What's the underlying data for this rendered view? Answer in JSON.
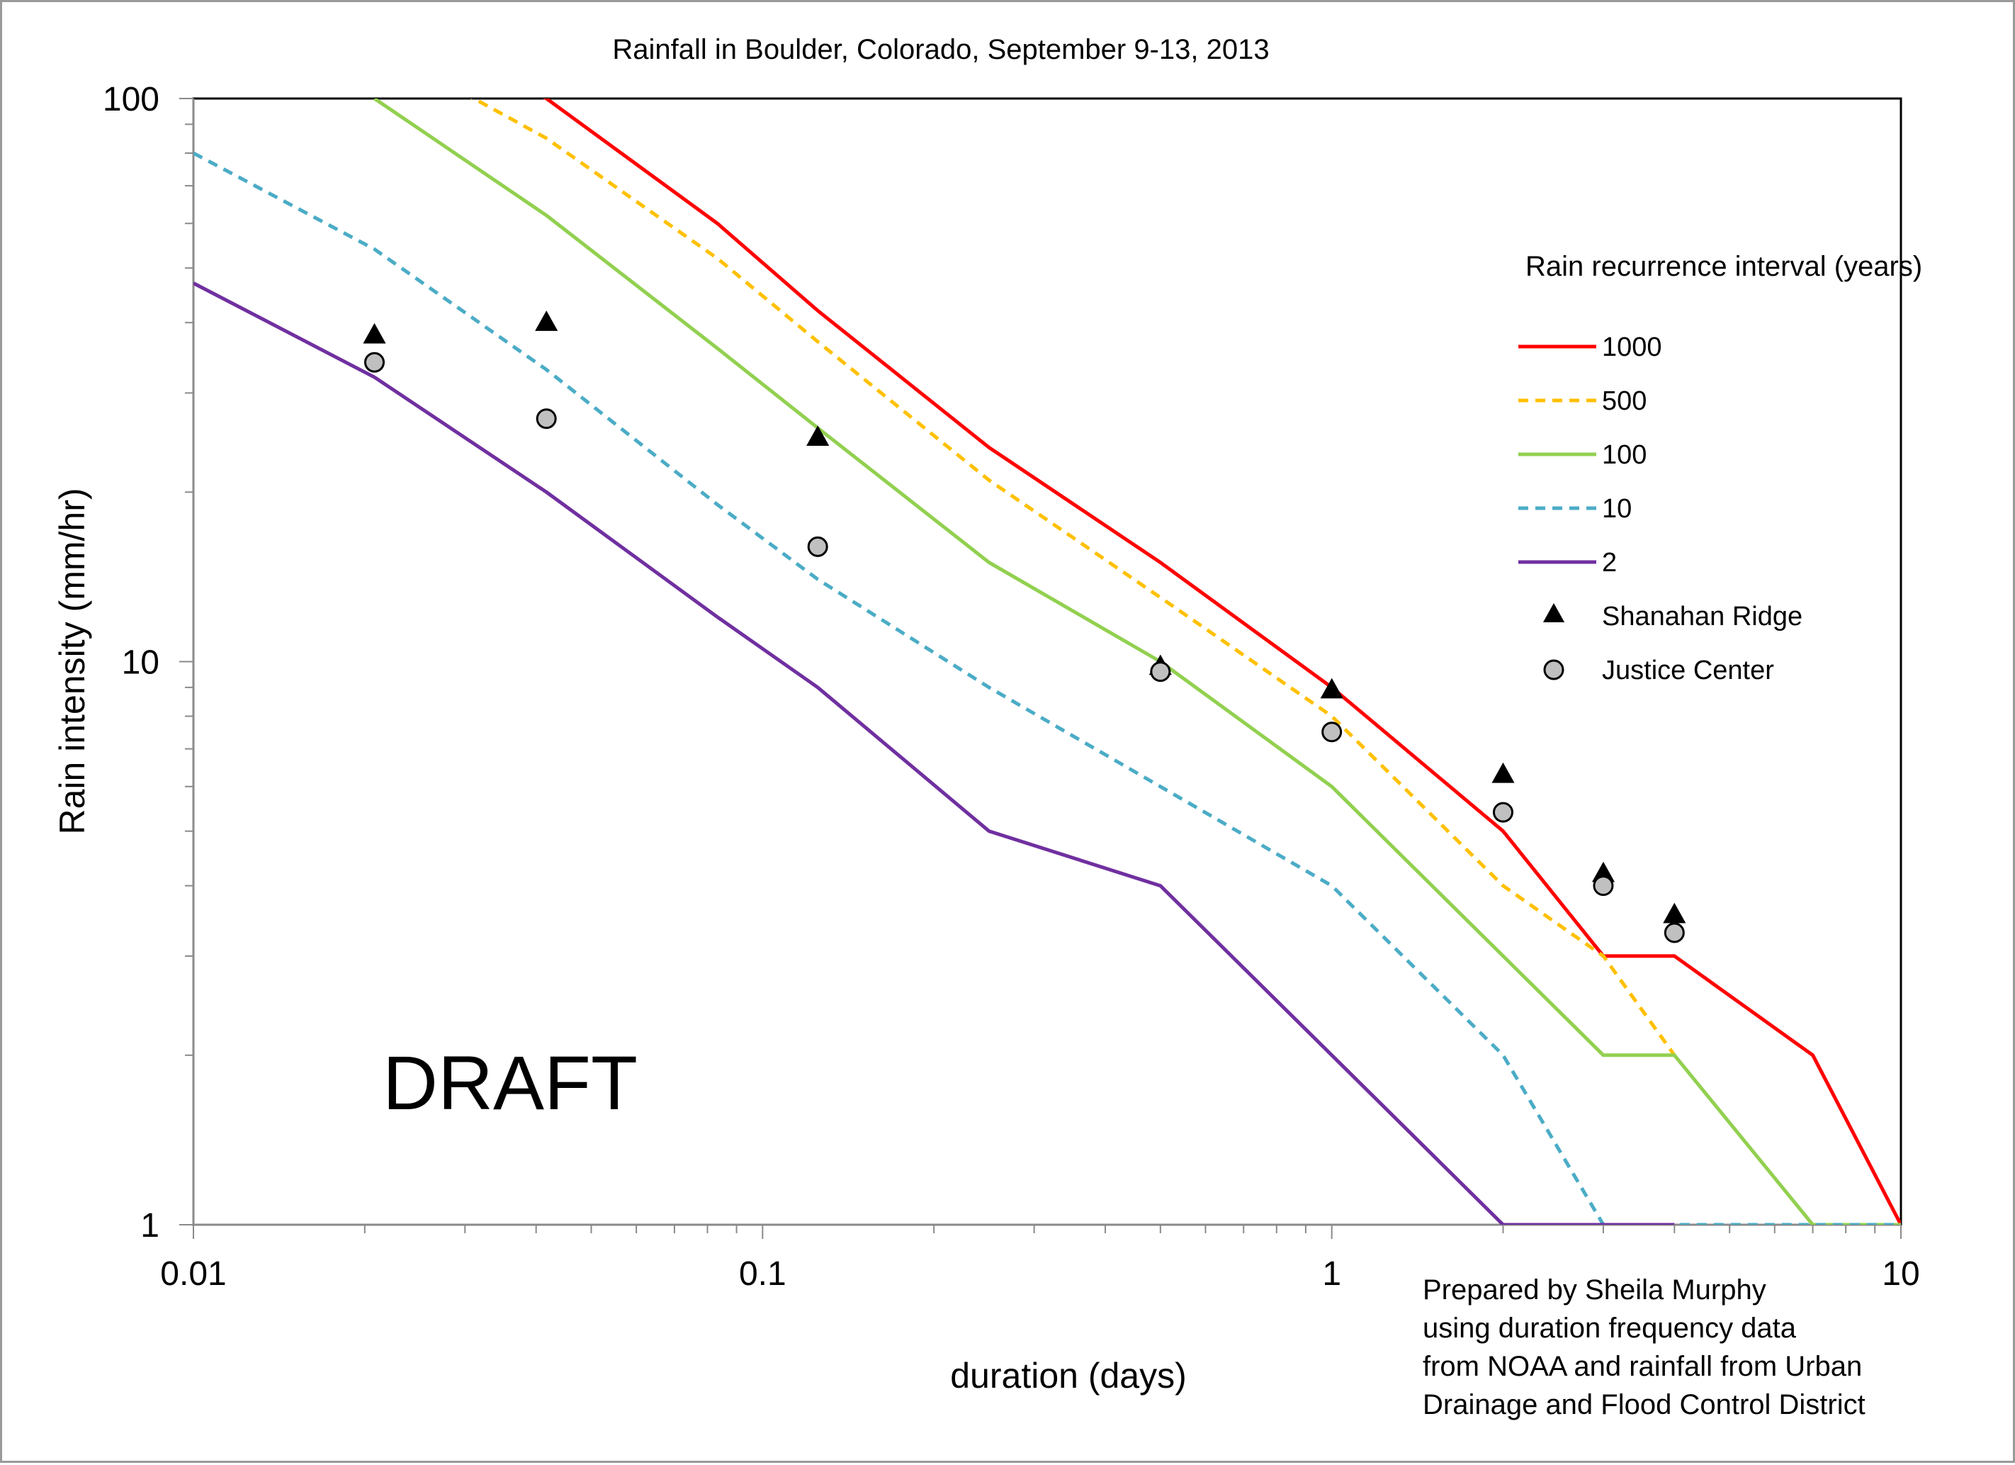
{
  "chart_data": {
    "type": "line",
    "title": "Rainfall in Boulder, Colorado, September 9-13, 2013",
    "xlabel": "duration (days)",
    "ylabel": "Rain intensity (mm/hr)",
    "x_scale": "log",
    "y_scale": "log",
    "xlim": [
      0.01,
      10
    ],
    "ylim": [
      1,
      100
    ],
    "x_ticks": [
      {
        "value": 0.01,
        "label": "0.01"
      },
      {
        "value": 0.1,
        "label": "0.1"
      },
      {
        "value": 1,
        "label": "1"
      },
      {
        "value": 10,
        "label": "10"
      }
    ],
    "y_ticks": [
      {
        "value": 1,
        "label": "1"
      },
      {
        "value": 10,
        "label": "10"
      },
      {
        "value": 100,
        "label": "100"
      }
    ],
    "grid": false,
    "legend": {
      "title": "Rain recurrence interval (years)",
      "position": "right"
    },
    "series": [
      {
        "name": "1000",
        "style": "solid",
        "color": "#ff0000",
        "x": [
          0.0208,
          0.0417,
          0.0833,
          0.125,
          0.25,
          0.5,
          1,
          2,
          3,
          4,
          7,
          10
        ],
        "y": [
          145,
          100,
          60,
          42,
          24,
          15,
          9,
          5,
          3,
          3,
          2,
          1
        ]
      },
      {
        "name": "500",
        "style": "dashed",
        "color": "#ffc000",
        "x": [
          0.0208,
          0.0417,
          0.0833,
          0.125,
          0.25,
          0.5,
          1,
          2,
          3,
          4
        ],
        "y": [
          125,
          85,
          52,
          37,
          21,
          13,
          8,
          4,
          3,
          2
        ]
      },
      {
        "name": "100",
        "style": "solid",
        "color": "#92d050",
        "x": [
          0.0208,
          0.0417,
          0.0833,
          0.125,
          0.25,
          0.5,
          1,
          2,
          3,
          4,
          7,
          10
        ],
        "y": [
          100,
          62,
          36,
          26,
          15,
          10,
          6,
          3,
          2,
          2,
          1,
          1
        ]
      },
      {
        "name": "10",
        "style": "dashed",
        "color": "#4bacc6",
        "x": [
          0.01,
          0.0208,
          0.0417,
          0.0833,
          0.125,
          0.25,
          0.5,
          1,
          2,
          3,
          4,
          7,
          10
        ],
        "y": [
          80,
          54,
          33,
          19,
          14,
          9,
          6,
          4,
          2,
          1,
          1,
          1,
          1
        ]
      },
      {
        "name": "2",
        "style": "solid",
        "color": "#7030a0",
        "x": [
          0.01,
          0.0208,
          0.0417,
          0.0833,
          0.125,
          0.25,
          0.5,
          1,
          2,
          3,
          4
        ],
        "y": [
          47,
          32,
          20,
          12,
          9,
          5,
          4,
          2,
          1,
          1,
          1
        ]
      },
      {
        "name": "Shanahan Ridge",
        "marker": "triangle",
        "color": "#000000",
        "x": [
          0.0208,
          0.0417,
          0.125,
          0.5,
          1,
          2,
          3,
          4
        ],
        "y": [
          38,
          40,
          25,
          9.8,
          8.9,
          6.3,
          4.2,
          3.55
        ]
      },
      {
        "name": "Justice Center",
        "marker": "circle",
        "color": "#c0c0c0",
        "x": [
          0.0208,
          0.0417,
          0.125,
          0.5,
          1,
          2,
          3,
          4
        ],
        "y": [
          34,
          27,
          16,
          9.6,
          7.5,
          5.4,
          4,
          3.3
        ]
      }
    ],
    "annotations": [
      {
        "text": "DRAFT"
      },
      {
        "lines": [
          "Prepared by Sheila Murphy",
          "using duration frequency data",
          "from NOAA and rainfall from Urban",
          "Drainage and Flood Control District"
        ]
      }
    ]
  }
}
